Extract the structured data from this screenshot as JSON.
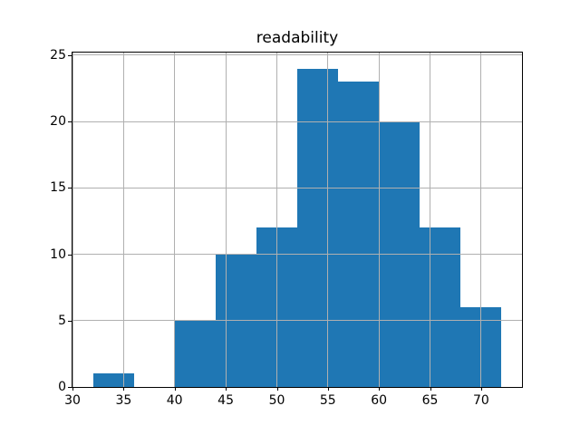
{
  "chart_data": {
    "type": "bar",
    "subtype": "histogram",
    "title": "readability",
    "xlabel": "",
    "ylabel": "",
    "bin_edges": [
      32,
      36,
      40,
      44,
      48,
      52,
      56,
      60,
      64,
      68,
      72
    ],
    "counts": [
      1,
      0,
      5,
      10,
      12,
      24,
      23,
      20,
      12,
      6
    ],
    "xlim": [
      30,
      74
    ],
    "ylim": [
      0,
      25.2
    ],
    "xticks": [
      30,
      35,
      40,
      45,
      50,
      55,
      60,
      65,
      70
    ],
    "yticks": [
      0,
      5,
      10,
      15,
      20,
      25
    ],
    "grid": true,
    "grid_color": "#b0b0b0",
    "grid_above_bars": true,
    "bar_color": "#1f77b4",
    "spine_color": "#000000",
    "background_color": "#ffffff",
    "legend_position": "none"
  }
}
